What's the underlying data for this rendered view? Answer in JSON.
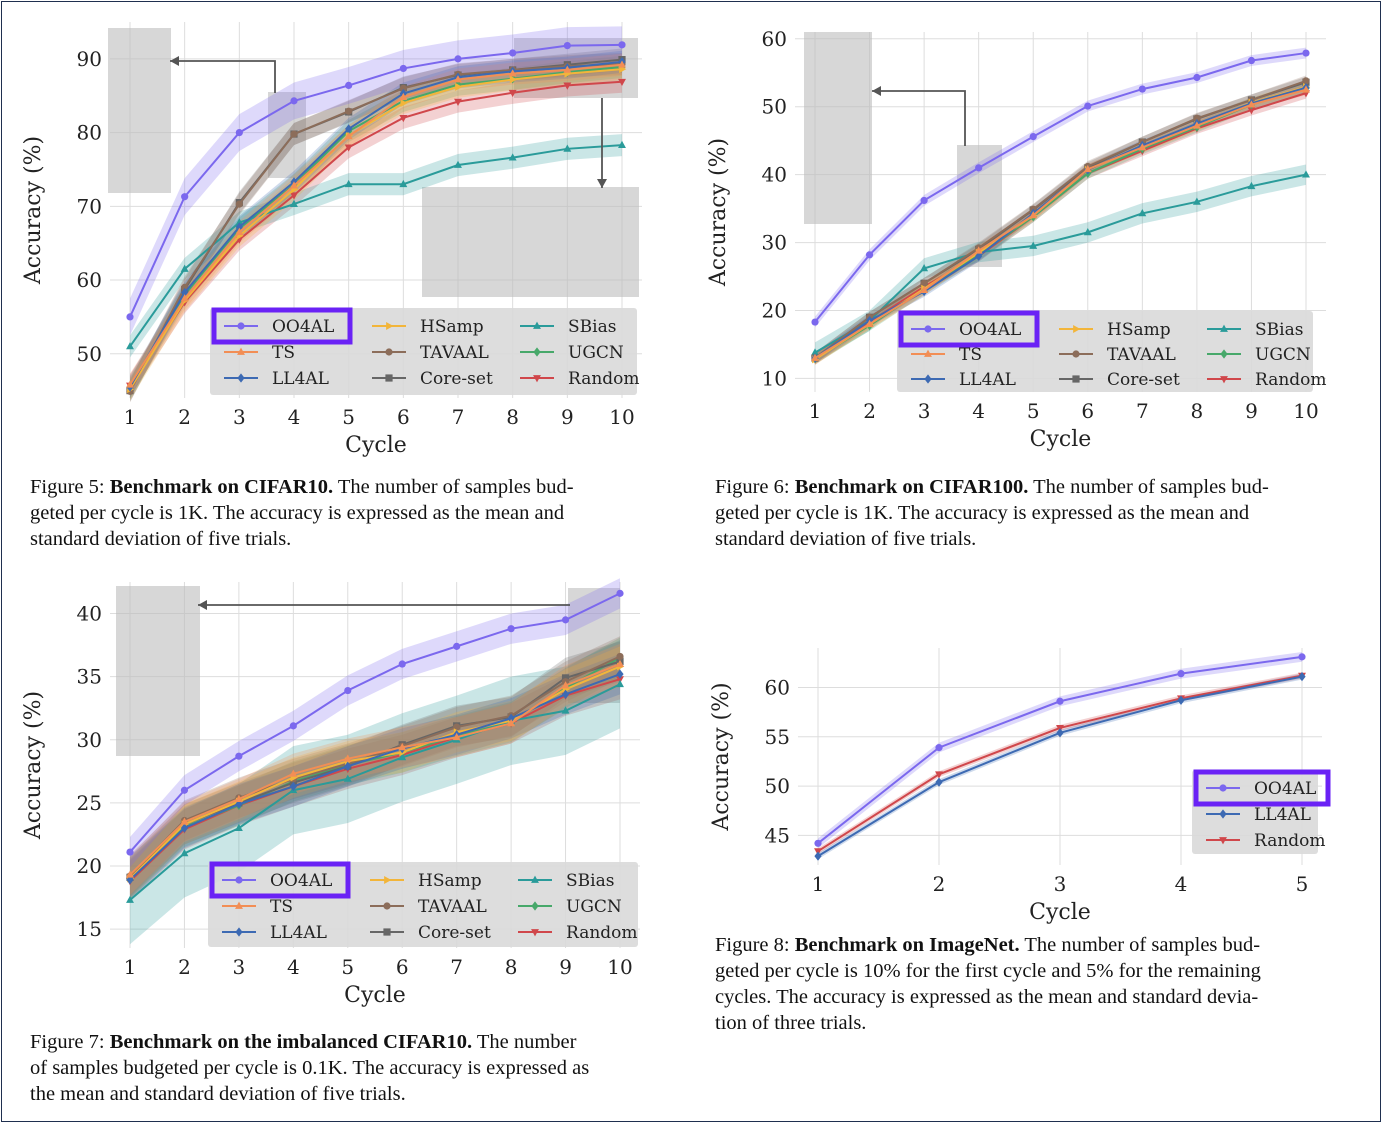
{
  "colors": {
    "OO4AL": "#7b68ee",
    "TS": "#f28e55",
    "LL4AL": "#3d6ab3",
    "HSamp": "#f2b53a",
    "TAVAAL": "#8c6d5a",
    "Core-set": "#666666",
    "SBias": "#2a9b9a",
    "UGCN": "#47a86a",
    "Random": "#d0474b",
    "highlight": "#6a22f5"
  },
  "chart_data": [
    {
      "id": "fig5",
      "type": "line",
      "title": "Benchmark on CIFAR10.",
      "xlabel": "Cycle",
      "ylabel": "Accuracy (%)",
      "categories": [
        1,
        2,
        3,
        4,
        5,
        6,
        7,
        8,
        9,
        10
      ],
      "yticks": [
        50,
        60,
        70,
        80,
        90
      ],
      "ylim": [
        44,
        95
      ],
      "legend": [
        "OO4AL",
        "TS",
        "LL4AL",
        "HSamp",
        "TAVAAL",
        "Core-set",
        "SBias",
        "UGCN",
        "Random"
      ],
      "legend_placement": "lower-right",
      "highlighted": "OO4AL",
      "series": [
        {
          "name": "OO4AL",
          "values": [
            55.0,
            71.3,
            80.0,
            84.3,
            86.4,
            88.7,
            90.0,
            90.8,
            91.8,
            91.9
          ],
          "band": 2.5
        },
        {
          "name": "TS",
          "values": [
            45.8,
            57.5,
            66.5,
            72.8,
            79.5,
            84.8,
            87.2,
            88.0,
            88.5,
            89.2
          ],
          "band": 1.5
        },
        {
          "name": "LL4AL",
          "values": [
            45.5,
            58.3,
            67.2,
            73.3,
            80.5,
            85.3,
            87.5,
            88.3,
            88.8,
            89.6
          ],
          "band": 1.5
        },
        {
          "name": "HSamp",
          "values": [
            45.2,
            57.2,
            66.0,
            72.3,
            79.6,
            84.0,
            86.2,
            87.2,
            88.0,
            88.6
          ],
          "band": 1.5
        },
        {
          "name": "TAVAAL",
          "values": [
            44.9,
            59.0,
            70.3,
            79.8,
            82.9,
            86.0,
            87.9,
            88.5,
            89.0,
            89.3
          ],
          "band": 1.5
        },
        {
          "name": "Core-set",
          "values": [
            45.0,
            58.7,
            70.5,
            79.8,
            82.8,
            86.1,
            87.8,
            88.5,
            89.2,
            89.9
          ],
          "band": 1.5
        },
        {
          "name": "SBias",
          "values": [
            51.0,
            61.5,
            67.8,
            70.3,
            73.0,
            73.0,
            75.6,
            76.6,
            77.8,
            78.3
          ],
          "band": 1.5
        },
        {
          "name": "UGCN",
          "values": [
            45.3,
            58.0,
            67.0,
            72.9,
            80.2,
            84.3,
            86.5,
            87.3,
            88.2,
            88.9
          ],
          "band": 1.5
        },
        {
          "name": "Random",
          "values": [
            45.7,
            57.0,
            65.5,
            71.5,
            78.0,
            82.0,
            84.2,
            85.4,
            86.4,
            86.9
          ],
          "band": 1.5
        }
      ]
    },
    {
      "id": "fig6",
      "type": "line",
      "title": "Benchmark on CIFAR100.",
      "xlabel": "Cycle",
      "ylabel": "Accuracy (%)",
      "categories": [
        1,
        2,
        3,
        4,
        5,
        6,
        7,
        8,
        9,
        10
      ],
      "yticks": [
        10,
        20,
        30,
        40,
        50,
        60
      ],
      "ylim": [
        8,
        61
      ],
      "legend": [
        "OO4AL",
        "TS",
        "LL4AL",
        "HSamp",
        "TAVAAL",
        "Core-set",
        "SBias",
        "UGCN",
        "Random"
      ],
      "legend_placement": "lower-right",
      "highlighted": "OO4AL",
      "series": [
        {
          "name": "OO4AL",
          "values": [
            18.3,
            28.2,
            36.2,
            41.0,
            45.6,
            50.1,
            52.6,
            54.3,
            56.8,
            57.9
          ],
          "band": 0.8
        },
        {
          "name": "TS",
          "values": [
            13.0,
            18.0,
            23.0,
            28.8,
            34.0,
            40.8,
            44.0,
            47.2,
            50.3,
            52.5
          ],
          "band": 0.8
        },
        {
          "name": "LL4AL",
          "values": [
            13.0,
            18.5,
            22.8,
            28.0,
            34.3,
            40.7,
            44.3,
            47.5,
            50.5,
            52.8
          ],
          "band": 0.8
        },
        {
          "name": "HSamp",
          "values": [
            12.8,
            18.0,
            23.2,
            28.5,
            34.0,
            40.7,
            44.1,
            47.3,
            50.6,
            52.9
          ],
          "band": 0.8
        },
        {
          "name": "TAVAAL",
          "values": [
            13.0,
            19.0,
            24.0,
            29.2,
            34.9,
            41.2,
            44.8,
            48.3,
            51.0,
            53.8
          ],
          "band": 0.8
        },
        {
          "name": "Core-set",
          "values": [
            13.0,
            19.0,
            24.0,
            29.0,
            34.8,
            41.0,
            44.8,
            48.2,
            51.0,
            53.6
          ],
          "band": 0.8
        },
        {
          "name": "SBias",
          "values": [
            13.8,
            18.5,
            26.2,
            28.6,
            29.5,
            31.5,
            34.3,
            36.0,
            38.3,
            40.0
          ],
          "band": 1.5
        },
        {
          "name": "UGCN",
          "values": [
            12.9,
            17.8,
            23.1,
            28.2,
            33.8,
            40.2,
            43.8,
            47.0,
            50.3,
            52.7
          ],
          "band": 0.8
        },
        {
          "name": "Random",
          "values": [
            12.8,
            18.3,
            23.5,
            28.0,
            33.8,
            40.2,
            43.5,
            46.8,
            49.5,
            52.0
          ],
          "band": 0.8
        }
      ]
    },
    {
      "id": "fig7",
      "type": "line",
      "title": "Benchmark on the imbalanced CIFAR10.",
      "xlabel": "Cycle",
      "ylabel": "Accuracy (%)",
      "categories": [
        1,
        2,
        3,
        4,
        5,
        6,
        7,
        8,
        9,
        10
      ],
      "yticks": [
        15,
        20,
        25,
        30,
        35,
        40
      ],
      "ylim": [
        13.5,
        42.5
      ],
      "legend": [
        "OO4AL",
        "TS",
        "LL4AL",
        "HSamp",
        "TAVAAL",
        "Core-set",
        "SBias",
        "UGCN",
        "Random"
      ],
      "legend_placement": "lower-right",
      "highlighted": "OO4AL",
      "series": [
        {
          "name": "OO4AL",
          "values": [
            21.1,
            26.0,
            28.7,
            31.1,
            33.9,
            36.0,
            37.4,
            38.8,
            39.5,
            41.6
          ],
          "band": 1.2
        },
        {
          "name": "TS",
          "values": [
            19.3,
            23.5,
            25.3,
            27.3,
            28.5,
            29.4,
            30.2,
            31.3,
            34.3,
            36.0
          ],
          "band": 1.6
        },
        {
          "name": "LL4AL",
          "values": [
            18.9,
            23.0,
            24.9,
            26.3,
            27.9,
            29.3,
            30.4,
            31.7,
            33.6,
            35.2
          ],
          "band": 1.6
        },
        {
          "name": "HSamp",
          "values": [
            19.0,
            23.3,
            25.1,
            27.0,
            28.3,
            29.0,
            30.6,
            31.5,
            34.0,
            35.8
          ],
          "band": 1.6
        },
        {
          "name": "TAVAAL",
          "values": [
            19.2,
            23.6,
            25.4,
            26.9,
            28.1,
            29.5,
            31.0,
            31.9,
            34.6,
            36.6
          ],
          "band": 1.6
        },
        {
          "name": "Core-set",
          "values": [
            19.1,
            23.3,
            25.0,
            26.6,
            27.9,
            29.6,
            31.1,
            31.8,
            34.9,
            36.2
          ],
          "band": 1.6
        },
        {
          "name": "SBias",
          "values": [
            17.3,
            21.0,
            23.0,
            26.0,
            26.9,
            28.6,
            30.0,
            31.5,
            32.3,
            34.4
          ],
          "band": 3.5
        },
        {
          "name": "UGCN",
          "values": [
            19.0,
            23.1,
            24.8,
            26.7,
            28.0,
            29.0,
            30.3,
            31.4,
            34.1,
            36.5
          ],
          "band": 1.6
        },
        {
          "name": "Random",
          "values": [
            18.8,
            22.9,
            24.8,
            26.3,
            27.7,
            28.8,
            30.2,
            31.3,
            33.5,
            34.8
          ],
          "band": 1.6
        }
      ]
    },
    {
      "id": "fig8",
      "type": "line",
      "title": "Benchmark on ImageNet.",
      "xlabel": "Cycle",
      "ylabel": "Accuracy (%)",
      "categories": [
        1,
        2,
        3,
        4,
        5
      ],
      "yticks": [
        45,
        50,
        55,
        60
      ],
      "ylim": [
        42,
        64
      ],
      "legend": [
        "OO4AL",
        "LL4AL",
        "Random"
      ],
      "legend_placement": "lower-right",
      "highlighted": "OO4AL",
      "series": [
        {
          "name": "OO4AL",
          "values": [
            44.2,
            53.9,
            58.6,
            61.4,
            63.1
          ],
          "band": 0.5
        },
        {
          "name": "LL4AL",
          "values": [
            42.9,
            50.4,
            55.4,
            58.7,
            61.1
          ],
          "band": 0.3
        },
        {
          "name": "Random",
          "values": [
            43.4,
            51.2,
            55.9,
            58.9,
            61.2
          ],
          "band": 0.3
        }
      ]
    }
  ],
  "captions": [
    {
      "label": "Figure 5:",
      "title": "Benchmark on CIFAR10.",
      "lines": [
        "The number of samples bud-",
        "geted per cycle is 1K. The accuracy is expressed as the mean and",
        "standard deviation of five trials."
      ]
    },
    {
      "label": "Figure 6:",
      "title": "Benchmark on CIFAR100.",
      "lines": [
        "The number of samples bud-",
        "geted per cycle is 1K. The accuracy is expressed as the mean and",
        "standard deviation of five trials."
      ]
    },
    {
      "label": "Figure 7:",
      "title": "Benchmark on the imbalanced CIFAR10.",
      "lines": [
        "The number",
        "of samples budgeted per cycle is 0.1K. The accuracy is expressed as",
        "the mean and standard deviation of five trials."
      ]
    },
    {
      "label": "Figure 8:",
      "title": "Benchmark on ImageNet.",
      "lines": [
        "The number of samples bud-",
        "geted per cycle is 10% for the first cycle and 5% for the remaining",
        "cycles. The accuracy is expressed as the mean and standard devia-",
        "tion of three trials."
      ]
    }
  ]
}
